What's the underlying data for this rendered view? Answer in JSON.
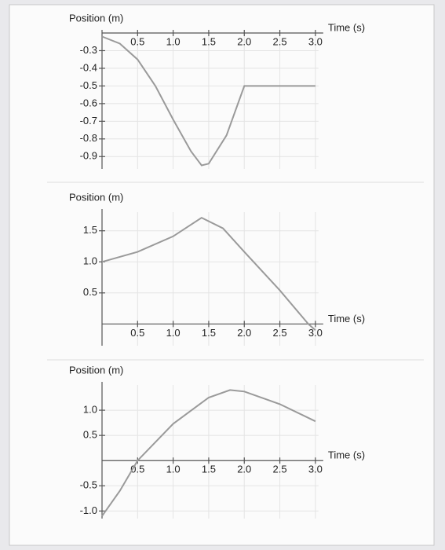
{
  "chart_data": [
    {
      "type": "line",
      "ylabel": "Position (m)",
      "xlabel": "Time (s)",
      "color": "#9a9a9a",
      "grid": true,
      "x": [
        0,
        0.25,
        0.5,
        0.75,
        1.0,
        1.25,
        1.4,
        1.5,
        1.75,
        2.0,
        2.5,
        3.0
      ],
      "values": [
        -0.22,
        -0.26,
        -0.35,
        -0.5,
        -0.69,
        -0.87,
        -0.95,
        -0.94,
        -0.78,
        -0.5,
        -0.5,
        -0.5
      ],
      "xlim": [
        0,
        3.2
      ],
      "ylim": [
        -0.97,
        -0.2
      ],
      "xticks": [
        0.5,
        {
          "value": 1,
          "label": "1.0"
        },
        1.5,
        {
          "value": 2,
          "label": "2.0"
        },
        2.5,
        {
          "value": 3,
          "label": "3.0"
        }
      ],
      "yticks": [
        -0.3,
        -0.4,
        -0.5,
        -0.6,
        -0.7,
        -0.8,
        -0.9
      ]
    },
    {
      "type": "line",
      "ylabel": "Position (m)",
      "xlabel": "Time (s)",
      "color": "#9a9a9a",
      "grid": true,
      "x": [
        0,
        0.5,
        1.0,
        1.4,
        1.7,
        2.0,
        2.5,
        2.9,
        3.0
      ],
      "values": [
        1.0,
        1.16,
        1.41,
        1.71,
        1.54,
        1.16,
        0.54,
        0,
        -0.1
      ],
      "xlim": [
        0,
        3.2
      ],
      "ylim": [
        -0.35,
        1.8
      ],
      "xticks": [
        0.5,
        {
          "value": 1,
          "label": "1.0"
        },
        1.5,
        {
          "value": 2,
          "label": "2.0"
        },
        2.5,
        {
          "value": 3,
          "label": "3.0"
        }
      ],
      "yticks": [
        1.5,
        {
          "value": 1,
          "label": "1.0"
        },
        0.5
      ]
    },
    {
      "type": "line",
      "ylabel": "Position (m)",
      "xlabel": "Time (s)",
      "color": "#9a9a9a",
      "grid": true,
      "x": [
        0,
        0.25,
        0.5,
        1.0,
        1.5,
        1.8,
        2.0,
        2.5,
        3.0
      ],
      "values": [
        -1.1,
        -0.6,
        0,
        0.73,
        1.25,
        1.4,
        1.37,
        1.12,
        0.78
      ],
      "xlim": [
        0,
        3.2
      ],
      "ylim": [
        -1.15,
        1.5
      ],
      "xticks": [
        0.5,
        {
          "value": 1,
          "label": "1.0"
        },
        1.5,
        {
          "value": 2,
          "label": "2.0"
        },
        2.5,
        {
          "value": 3,
          "label": "3.0"
        }
      ],
      "yticks": [
        {
          "value": 1,
          "label": "1.0"
        },
        0.5,
        -0.5,
        {
          "value": -1,
          "label": "-1.0"
        }
      ]
    }
  ]
}
